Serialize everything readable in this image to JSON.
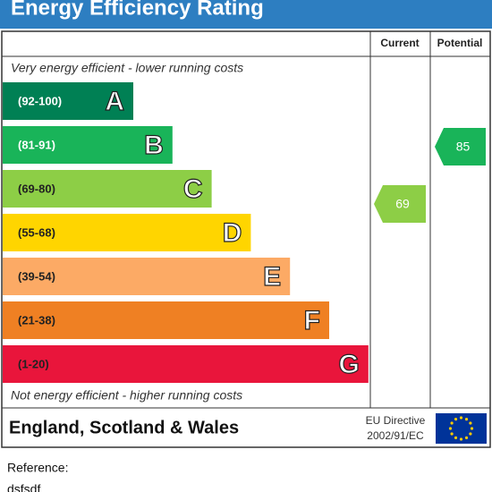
{
  "title": "Energy Efficiency Rating",
  "columns": [
    "Current",
    "Potential"
  ],
  "top_note": "Very energy efficient - lower running costs",
  "bottom_note": "Not energy efficient - higher running costs",
  "bands": [
    {
      "range": "(92-100)",
      "letter": "A",
      "color": "#008054"
    },
    {
      "range": "(81-91)",
      "letter": "B",
      "color": "#19b459"
    },
    {
      "range": "(69-80)",
      "letter": "C",
      "color": "#8dce46"
    },
    {
      "range": "(55-68)",
      "letter": "D",
      "color": "#ffd500"
    },
    {
      "range": "(39-54)",
      "letter": "E",
      "color": "#fcaa65"
    },
    {
      "range": "(21-38)",
      "letter": "F",
      "color": "#ef8023"
    },
    {
      "range": "(1-20)",
      "letter": "G",
      "color": "#e9153b"
    }
  ],
  "current": 69,
  "potential": 85,
  "footer": {
    "region": "England, Scotland & Wales",
    "directive": "EU Directive",
    "directive_code": "2002/91/EC"
  },
  "reference_label": "Reference:",
  "reference_value": "dsfsdf"
}
